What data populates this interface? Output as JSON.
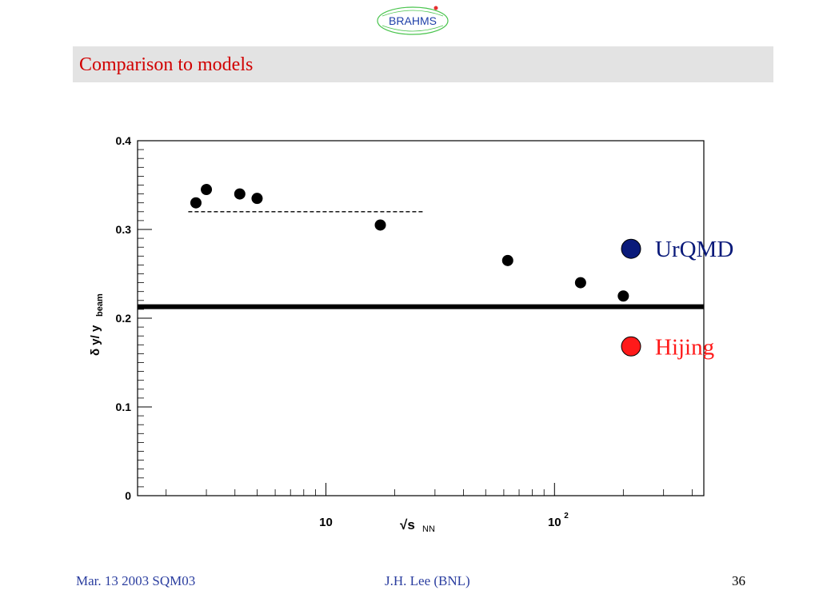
{
  "logo": {
    "text": "BRAHMS"
  },
  "slide": {
    "title": "Comparison to models"
  },
  "chart_data": {
    "type": "scatter",
    "xscale": "log",
    "xlim": [
      1.5,
      450
    ],
    "ylim": [
      0,
      0.4
    ],
    "yticks": [
      "0",
      "0.1",
      "0.2",
      "0.3",
      "0.4"
    ],
    "xticks": [
      {
        "value": 10,
        "label": "10"
      },
      {
        "value": 100,
        "label": "10",
        "sup": "2"
      }
    ],
    "xlabel": {
      "main": "√s",
      "sub": "NN"
    },
    "ylabel": {
      "main": "δ y/ y",
      "sub": "beam"
    },
    "series": [
      {
        "marker": "circle",
        "color": "#000000",
        "x": [
          2.7,
          3.0,
          4.2,
          5.0,
          17.3,
          62.4,
          130,
          200
        ],
        "y": [
          0.33,
          0.345,
          0.34,
          0.335,
          0.305,
          0.265,
          0.24,
          0.225
        ]
      }
    ],
    "reference_lines": [
      {
        "style": "dashed",
        "y": 0.32,
        "x": [
          2.5,
          27
        ]
      },
      {
        "style": "solid",
        "y": 0.213,
        "x": [
          1.5,
          450
        ]
      }
    ],
    "legend": [
      {
        "label": "UrQMD",
        "color": "#0a1a7a",
        "y": 0.28
      },
      {
        "label": "Hijing",
        "color": "#ff1a1a",
        "y": 0.17
      }
    ],
    "grid": false
  },
  "footer": {
    "left": "Mar. 13  2003 SQM03",
    "center": "J.H. Lee (BNL)",
    "page": "36"
  }
}
